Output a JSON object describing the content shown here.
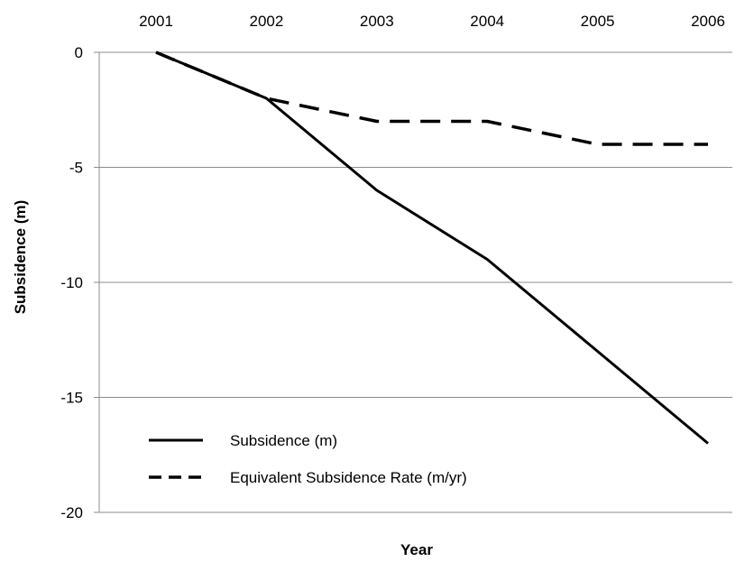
{
  "chart_data": {
    "type": "line",
    "title": "",
    "xlabel": "Year",
    "ylabel": "Subsidence (m)",
    "x": [
      2001,
      2002,
      2003,
      2004,
      2005,
      2006
    ],
    "x_tick_labels": [
      "2001",
      "2002",
      "2003",
      "2004",
      "2005",
      "2006"
    ],
    "x_axis_position": "top",
    "ylim": [
      -20,
      0
    ],
    "y_ticks": [
      0,
      -5,
      -10,
      -15,
      -20
    ],
    "y_tick_labels": [
      "0",
      "-5",
      "-10",
      "-15",
      "-20"
    ],
    "grid": "horizontal",
    "legend_position": "bottom-left",
    "series": [
      {
        "name": "Subsidence (m)",
        "style": "solid",
        "color": "#000000",
        "values": [
          0,
          -2,
          -6,
          -9,
          -13,
          -17
        ]
      },
      {
        "name": "Equivalent Subsidence Rate (m/yr)",
        "style": "dashed",
        "color": "#000000",
        "values": [
          0,
          -2,
          -3,
          -3,
          -4,
          -4
        ]
      }
    ]
  }
}
